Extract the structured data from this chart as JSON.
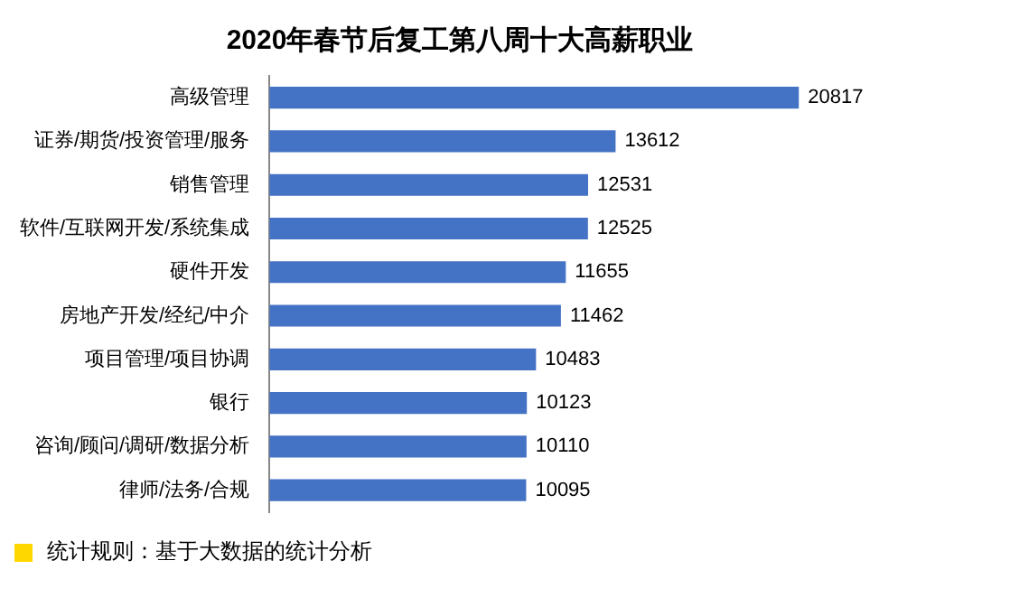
{
  "chart_data": {
    "type": "bar",
    "orientation": "horizontal",
    "title": "2020年春节后复工第八周十大高薪职业",
    "categories": [
      "高级管理",
      "证券/期货/投资管理/服务",
      "销售管理",
      "软件/互联网开发/系统集成",
      "硬件开发",
      "房地产开发/经纪/中介",
      "项目管理/项目协调",
      "银行",
      "咨询/顾问/调研/数据分析",
      "律师/法务/合规"
    ],
    "values": [
      20817,
      13612,
      12531,
      12525,
      11655,
      11462,
      10483,
      10123,
      10110,
      10095
    ],
    "color": "#4472c4",
    "data_labels": true,
    "grid": false,
    "legend": false,
    "annotations": [
      "统计规则：基于大数据的统计分析"
    ]
  }
}
